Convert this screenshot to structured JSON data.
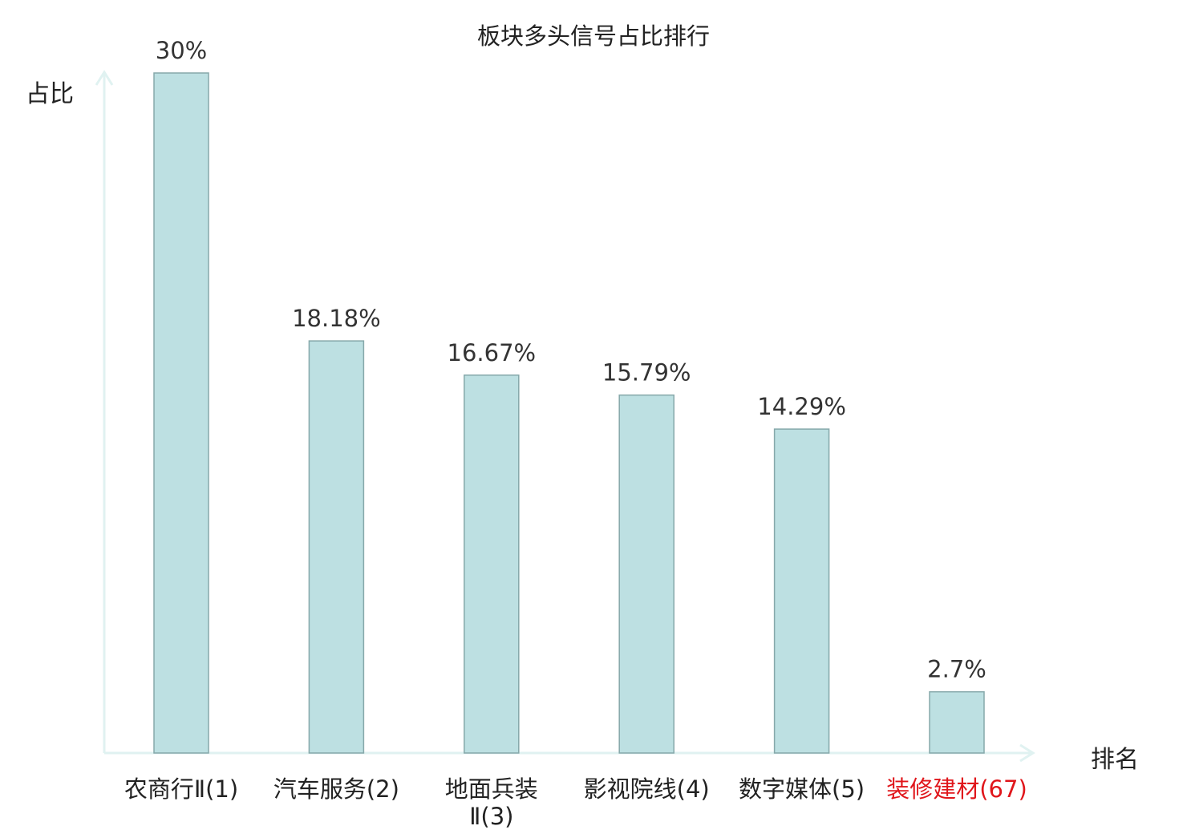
{
  "chart_data": {
    "type": "bar",
    "title": "板块多头信号占比排行",
    "xlabel": "排名",
    "ylabel": "占比",
    "ylim": [
      0,
      30
    ],
    "grid": false,
    "categories": [
      {
        "name": "农商行Ⅱ",
        "rank": "(1)",
        "highlight": false
      },
      {
        "name": "汽车服务",
        "rank": "(2)",
        "highlight": false
      },
      {
        "name": "地面兵装Ⅱ",
        "rank": "(3)",
        "highlight": false
      },
      {
        "name": "影视院线",
        "rank": "(4)",
        "highlight": false
      },
      {
        "name": "数字媒体",
        "rank": "(5)",
        "highlight": false
      },
      {
        "name": "装修建材",
        "rank": "(67)",
        "highlight": true
      }
    ],
    "values": [
      30,
      18.18,
      16.67,
      15.79,
      14.29,
      2.7
    ],
    "value_labels": [
      "30%",
      "18.18%",
      "16.67%",
      "15.79%",
      "14.29%",
      "2.7%"
    ]
  },
  "colors": {
    "bar_fill": "#bde0e2",
    "bar_stroke": "#86a8aa",
    "axis": "#e0f2f1",
    "label": "#222222",
    "value_label": "#333333",
    "highlight": "#e0161b"
  }
}
